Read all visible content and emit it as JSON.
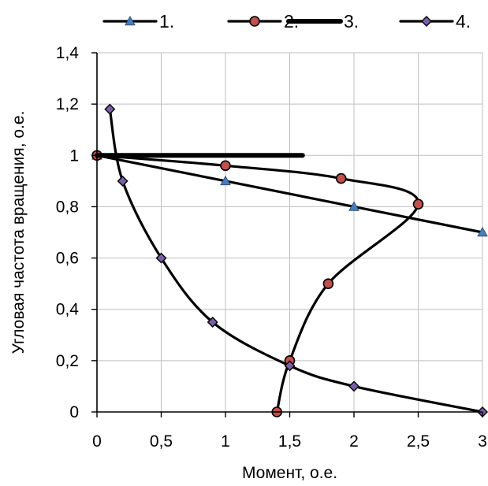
{
  "chart_data": {
    "type": "line",
    "title": "",
    "xlabel": "Момент, о.е.",
    "ylabel": "Угловая частота вращения, о.е.",
    "xlim": [
      0,
      3
    ],
    "ylim": [
      0,
      1.4
    ],
    "grid": true,
    "legend_position": "top",
    "x_ticks": [
      "0",
      "0,5",
      "1",
      "1,5",
      "2",
      "2,5",
      "3"
    ],
    "y_ticks": [
      "0",
      "0,2",
      "0,4",
      "0,6",
      "0,8",
      "1",
      "1,2",
      "1,4"
    ],
    "series": [
      {
        "name": "1.",
        "marker": "triangle",
        "marker_color": "#4a7ebb",
        "line_color": "#000000",
        "smooth": false,
        "points": [
          [
            0,
            1
          ],
          [
            1,
            0.9
          ],
          [
            2,
            0.8
          ],
          [
            3,
            0.7
          ]
        ]
      },
      {
        "name": "2.",
        "marker": "circle",
        "marker_color": "#c0504d",
        "line_color": "#000000",
        "smooth": true,
        "points": [
          [
            0,
            1
          ],
          [
            1,
            0.96
          ],
          [
            1.9,
            0.91
          ],
          [
            2.5,
            0.81
          ],
          [
            1.8,
            0.5
          ],
          [
            1.5,
            0.2
          ],
          [
            1.4,
            0
          ]
        ]
      },
      {
        "name": "3.",
        "marker": "none",
        "line_color": "#000000",
        "smooth": false,
        "thick": true,
        "points": [
          [
            0,
            1
          ],
          [
            1.6,
            1
          ]
        ]
      },
      {
        "name": "4.",
        "marker": "diamond",
        "marker_color": "#7b5ea7",
        "line_color": "#000000",
        "smooth": true,
        "points": [
          [
            0.1,
            1.18
          ],
          [
            0.2,
            0.9
          ],
          [
            0.5,
            0.6
          ],
          [
            0.9,
            0.35
          ],
          [
            1.5,
            0.18
          ],
          [
            2,
            0.1
          ],
          [
            3,
            0
          ]
        ]
      }
    ]
  }
}
